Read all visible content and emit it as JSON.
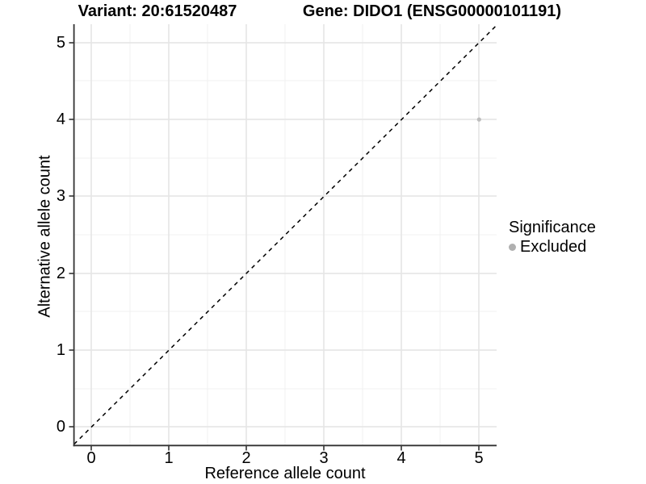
{
  "titles": {
    "left": "Variant: 20:61520487",
    "right": "Gene: DIDO1 (ENSG00000101191)"
  },
  "chart_data": {
    "type": "scatter",
    "title": "Variant: 20:61520487 | Gene: DIDO1 (ENSG00000101191)",
    "xlabel": "Reference allele count",
    "ylabel": "Alternative allele count",
    "xlim": [
      -0.25,
      5.25
    ],
    "ylim": [
      -0.25,
      5.25
    ],
    "x_ticks": [
      0,
      1,
      2,
      3,
      4,
      5
    ],
    "y_ticks": [
      0,
      1,
      2,
      3,
      4,
      5
    ],
    "x_tick_labels": [
      "0",
      "1",
      "2",
      "3",
      "4",
      "5"
    ],
    "y_tick_labels": [
      "0",
      "1",
      "2",
      "3",
      "4",
      "5"
    ],
    "grid": "major and minor gridlines, white background",
    "series": [
      {
        "name": "Excluded",
        "points": [
          {
            "x": 5,
            "y": 4
          }
        ],
        "color": "#bdbdbd"
      }
    ],
    "annotations": [
      {
        "type": "identity-line",
        "equation": "y = x",
        "style": "dashed",
        "color": "#000000"
      }
    ],
    "legend": {
      "title": "Significance",
      "position": "right",
      "entries": [
        {
          "label": "Excluded",
          "color": "#b0b0b0"
        }
      ]
    },
    "colors": {
      "major_grid": "#e4e4e4",
      "minor_grid": "#f1f1f1",
      "axis_line": "#333333",
      "point": "#bdbdbd"
    }
  }
}
